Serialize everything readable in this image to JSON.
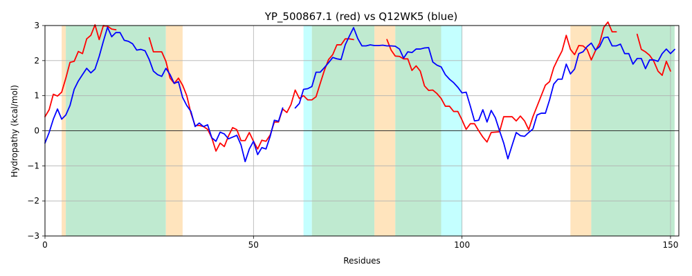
{
  "chart_data": {
    "type": "line",
    "title": "YP_500867.1 (red) vs Q12WK5 (blue)",
    "xlabel": "Residues",
    "ylabel": "Hydropathy (kcal/mol)",
    "xlim": [
      0,
      152
    ],
    "ylim": [
      -3,
      3
    ],
    "xticks": [
      0,
      50,
      100,
      150
    ],
    "yticks": [
      -3,
      -2,
      -1,
      0,
      1,
      2,
      3
    ],
    "grid": true,
    "zero_line": true,
    "region_colors": {
      "orange": "#ffe4bd",
      "green": "#bfead0",
      "cyan": "#c4ffff"
    },
    "regions": [
      {
        "start": 4,
        "end": 5,
        "color": "orange"
      },
      {
        "start": 5,
        "end": 29,
        "color": "green"
      },
      {
        "start": 29,
        "end": 33,
        "color": "orange"
      },
      {
        "start": 62,
        "end": 64,
        "color": "cyan"
      },
      {
        "start": 64,
        "end": 79,
        "color": "green"
      },
      {
        "start": 79,
        "end": 84,
        "color": "orange"
      },
      {
        "start": 84,
        "end": 95,
        "color": "green"
      },
      {
        "start": 95,
        "end": 100,
        "color": "cyan"
      },
      {
        "start": 126,
        "end": 131,
        "color": "orange"
      },
      {
        "start": 131,
        "end": 151,
        "color": "green"
      }
    ],
    "series": [
      {
        "name": "YP_500867.1",
        "color": "#ff0000",
        "values": [
          0.4,
          0.6,
          1.04,
          0.99,
          1.1,
          1.5,
          1.95,
          1.98,
          2.26,
          2.2,
          2.62,
          2.72,
          3.02,
          2.6,
          3.0,
          2.98,
          2.9,
          2.88,
          null,
          null,
          null,
          null,
          null,
          null,
          null,
          2.65,
          2.25,
          2.25,
          2.25,
          1.98,
          1.5,
          1.35,
          1.5,
          1.3,
          1.0,
          0.5,
          0.15,
          0.15,
          0.12,
          0.04,
          -0.2,
          -0.58,
          -0.35,
          -0.45,
          -0.15,
          0.09,
          0.03,
          -0.28,
          -0.28,
          -0.05,
          -0.3,
          -0.52,
          -0.27,
          -0.3,
          -0.12,
          0.25,
          0.25,
          0.62,
          0.52,
          0.75,
          1.16,
          0.92,
          1.0,
          0.88,
          0.88,
          0.97,
          1.35,
          1.72,
          2.03,
          2.17,
          2.45,
          2.45,
          2.62,
          2.62,
          2.6,
          null,
          null,
          null,
          null,
          null,
          null,
          null,
          2.6,
          2.3,
          2.13,
          2.12,
          2.05,
          2.05,
          1.72,
          1.85,
          1.7,
          1.28,
          1.15,
          1.16,
          1.06,
          0.92,
          0.7,
          0.7,
          0.55,
          0.55,
          0.31,
          0.04,
          0.2,
          0.2,
          0.0,
          -0.18,
          -0.32,
          -0.05,
          -0.04,
          -0.03,
          0.4,
          0.4,
          0.4,
          0.28,
          0.42,
          0.28,
          0.03,
          0.4,
          0.7,
          1.0,
          1.3,
          1.4,
          1.8,
          2.05,
          2.28,
          2.72,
          2.32,
          2.17,
          2.43,
          2.42,
          2.32,
          2.02,
          2.28,
          2.5,
          2.95,
          3.1,
          2.82,
          2.82,
          null,
          null,
          null,
          null,
          2.75,
          2.32,
          2.25,
          2.15,
          1.98,
          1.7,
          1.58,
          1.98,
          1.7
        ]
      },
      {
        "name": "Q12WK5",
        "color": "#0000ff",
        "values": [
          -0.35,
          -0.05,
          0.33,
          0.62,
          0.33,
          0.45,
          0.72,
          1.18,
          1.42,
          1.6,
          1.78,
          1.65,
          1.76,
          2.12,
          2.55,
          2.95,
          2.68,
          2.8,
          2.8,
          2.58,
          2.55,
          2.48,
          2.3,
          2.32,
          2.28,
          2.03,
          1.7,
          1.6,
          1.55,
          1.78,
          1.6,
          1.35,
          1.4,
          0.95,
          0.72,
          0.55,
          0.12,
          0.22,
          0.12,
          0.17,
          -0.2,
          -0.3,
          -0.04,
          -0.09,
          -0.23,
          -0.18,
          -0.13,
          -0.4,
          -0.88,
          -0.52,
          -0.3,
          -0.68,
          -0.48,
          -0.52,
          -0.16,
          0.3,
          0.27,
          0.65,
          null,
          null,
          0.65,
          0.78,
          1.18,
          1.2,
          1.26,
          1.67,
          1.67,
          1.8,
          1.94,
          2.09,
          2.05,
          2.03,
          2.45,
          2.7,
          2.94,
          2.63,
          2.42,
          2.42,
          2.45,
          2.43,
          2.43,
          2.44,
          2.42,
          2.42,
          2.41,
          2.33,
          2.07,
          2.25,
          2.23,
          2.33,
          2.33,
          2.36,
          2.37,
          1.96,
          1.87,
          1.82,
          1.6,
          1.47,
          1.37,
          1.24,
          1.08,
          1.1,
          0.7,
          0.28,
          0.3,
          0.6,
          0.25,
          0.58,
          0.37,
          0.0,
          -0.35,
          -0.8,
          -0.42,
          -0.05,
          -0.14,
          -0.16,
          -0.05,
          0.05,
          0.45,
          0.5,
          0.5,
          0.88,
          1.33,
          1.47,
          1.47,
          1.9,
          1.62,
          1.76,
          2.2,
          2.25,
          2.4,
          2.5,
          2.3,
          2.4,
          2.65,
          2.67,
          2.42,
          2.42,
          2.47,
          2.2,
          2.2,
          1.9,
          2.06,
          2.06,
          1.77,
          2.02,
          2.02,
          1.98,
          2.2,
          2.33,
          2.2,
          2.32
        ]
      }
    ]
  }
}
